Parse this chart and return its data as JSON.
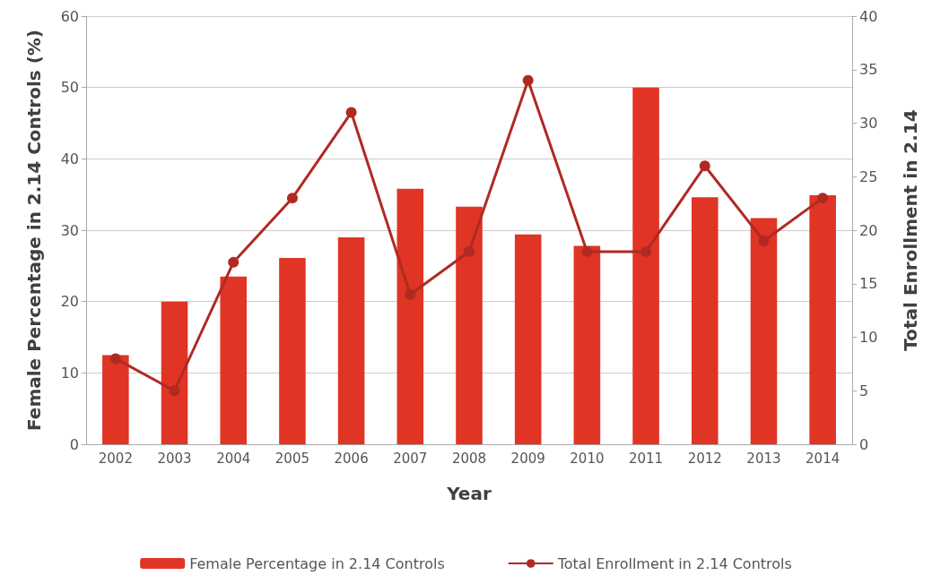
{
  "chart_data": {
    "type": "bar",
    "xlabel": "Year",
    "ylabel": "Female Percentage in 2.14 Controls (%)",
    "y2label": "Total Enrollment in 2.14",
    "categories": [
      "2002",
      "2003",
      "2004",
      "2005",
      "2006",
      "2007",
      "2008",
      "2009",
      "2010",
      "2011",
      "2012",
      "2013",
      "2014"
    ],
    "series": [
      {
        "name": "Female Percentage in 2.14 Controls",
        "color": "#e03424",
        "values": [
          12.5,
          20,
          23.5,
          26.1,
          29,
          35.8,
          33.3,
          29.4,
          27.8,
          50,
          34.6,
          31.7,
          34.9
        ]
      },
      {
        "name": "Total Enrollment in 2.14 Controls",
        "type": "line",
        "axis": "y2",
        "color": "#b02a22",
        "marker": "circle",
        "values": [
          8,
          5,
          17,
          23,
          31,
          14,
          18,
          34,
          18,
          18,
          26,
          19,
          23
        ]
      }
    ],
    "ylim": [
      0,
      60
    ],
    "yticks": [
      0,
      10,
      20,
      30,
      40,
      50,
      60
    ],
    "y2lim": [
      0,
      40
    ],
    "y2ticks": [
      0,
      5,
      10,
      15,
      20,
      25,
      30,
      35,
      40
    ],
    "grid": "y",
    "legend": "bottom"
  }
}
